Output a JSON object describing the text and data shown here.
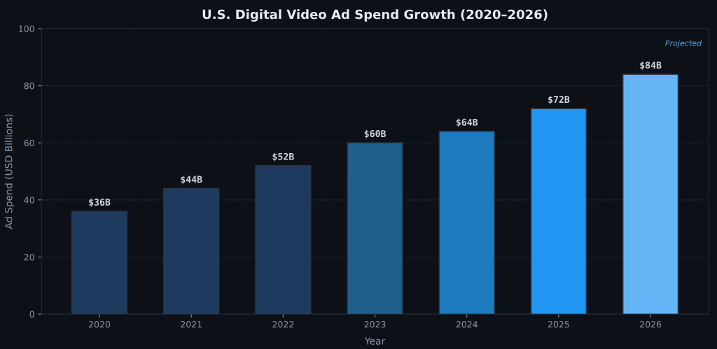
{
  "chart_data": {
    "type": "bar",
    "title": "U.S. Digital Video Ad Spend Growth (2020–2026)",
    "xlabel": "Year",
    "ylabel": "Ad Spend (USD Billions)",
    "categories": [
      "2020",
      "2021",
      "2022",
      "2023",
      "2024",
      "2025",
      "2026"
    ],
    "values": [
      36,
      44,
      52,
      60,
      64,
      72,
      84
    ],
    "colors": [
      "#1e3a5f",
      "#1e3a5f",
      "#1e3a5f",
      "#1f5f8b",
      "#1f7bbf",
      "#2196f3",
      "#64b5f6"
    ],
    "value_labels": [
      "$36B",
      "$44B",
      "$52B",
      "$60B",
      "$64B",
      "$72B",
      "$84B"
    ],
    "ylim": [
      0,
      100
    ],
    "yticks": [
      0,
      20,
      40,
      60,
      80,
      100
    ],
    "grid": "y",
    "annotations": [
      "Projected"
    ]
  }
}
